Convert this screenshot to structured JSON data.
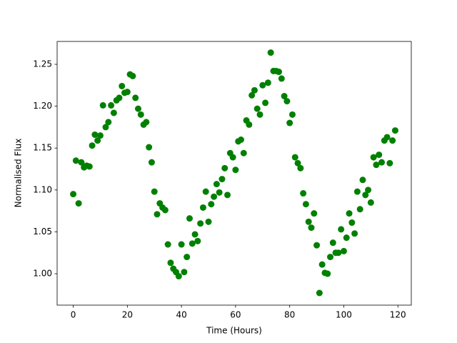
{
  "chart_data": {
    "type": "scatter",
    "xlabel": "Time (Hours)",
    "ylabel": "Normalised Flux",
    "color": "#008000",
    "x": [
      0,
      1,
      2,
      3,
      4,
      5,
      6,
      7,
      8,
      9,
      10,
      11,
      12,
      13,
      14,
      15,
      16,
      17,
      18,
      19,
      20,
      21,
      22,
      23,
      24,
      25,
      26,
      27,
      28,
      29,
      30,
      31,
      32,
      33,
      34,
      35,
      36,
      37,
      38,
      39,
      40,
      41,
      42,
      43,
      44,
      45,
      46,
      47,
      48,
      49,
      50,
      51,
      52,
      53,
      54,
      55,
      56,
      57,
      58,
      59,
      60,
      61,
      62,
      63,
      64,
      65,
      66,
      67,
      68,
      69,
      70,
      71,
      72,
      73,
      74,
      75,
      76,
      77,
      78,
      79,
      80,
      81,
      82,
      83,
      84,
      85,
      86,
      87,
      88,
      89,
      90,
      91,
      92,
      93,
      94,
      95,
      96,
      97,
      98,
      99,
      100,
      101,
      102,
      103,
      104,
      105,
      106,
      107,
      108,
      109,
      110,
      111,
      112,
      113,
      114,
      115,
      116,
      117,
      118,
      119
    ],
    "values": [
      1.095,
      1.135,
      1.084,
      1.133,
      1.127,
      1.129,
      1.128,
      1.153,
      1.166,
      1.159,
      1.165,
      1.201,
      1.175,
      1.181,
      1.201,
      1.192,
      1.207,
      1.21,
      1.224,
      1.216,
      1.217,
      1.238,
      1.236,
      1.21,
      1.197,
      1.19,
      1.178,
      1.181,
      1.151,
      1.133,
      1.098,
      1.071,
      1.084,
      1.079,
      1.076,
      1.035,
      1.013,
      1.006,
      1.002,
      0.997,
      1.035,
      1.002,
      1.02,
      1.066,
      1.036,
      1.047,
      1.039,
      1.06,
      1.079,
      1.098,
      1.062,
      1.083,
      1.092,
      1.107,
      1.097,
      1.113,
      1.126,
      1.094,
      1.144,
      1.139,
      1.124,
      1.158,
      1.16,
      1.144,
      1.183,
      1.178,
      1.213,
      1.219,
      1.197,
      1.19,
      1.225,
      1.204,
      1.228,
      1.264,
      1.242,
      1.242,
      1.241,
      1.233,
      1.212,
      1.206,
      1.18,
      1.19,
      1.139,
      1.132,
      1.126,
      1.096,
      1.083,
      1.062,
      1.055,
      1.072,
      1.034,
      0.977,
      1.011,
      1.001,
      1.0,
      1.02,
      1.037,
      1.025,
      1.025,
      1.053,
      1.027,
      1.043,
      1.072,
      1.061,
      1.048,
      1.098,
      1.077,
      1.112,
      1.094,
      1.1,
      1.085,
      1.139,
      1.13,
      1.142,
      1.133,
      1.159,
      1.163,
      1.132,
      1.159,
      1.171
    ],
    "xlim": [
      -5.95,
      124.95
    ],
    "xticks": [
      0,
      20,
      40,
      60,
      80,
      100,
      120
    ],
    "ylim": [
      0.9625,
      1.2773
    ],
    "yticks": [
      {
        "value": 1.0,
        "label": "1.00"
      },
      1.05,
      {
        "value": 1.1,
        "label": "1.10"
      },
      1.15,
      {
        "value": 1.2,
        "label": "1.20"
      },
      1.25
    ],
    "grid": false
  }
}
